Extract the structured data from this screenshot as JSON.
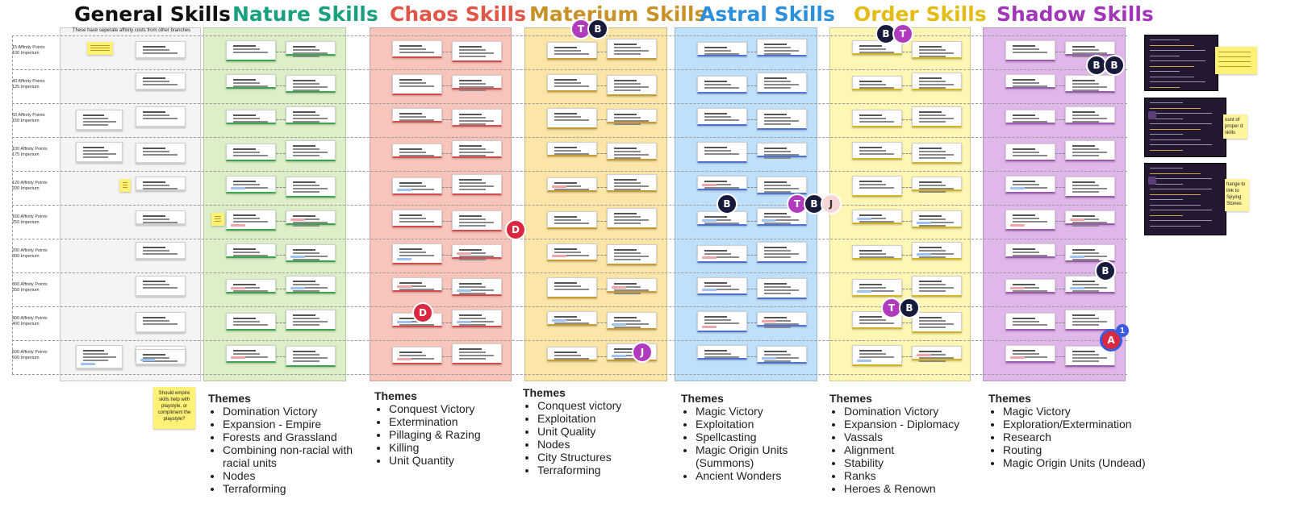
{
  "columns": [
    {
      "key": "general",
      "title": "General Skills",
      "color": "#111111",
      "bg": "#f4f4f4"
    },
    {
      "key": "nature",
      "title": "Nature Skills",
      "color": "#1a9f80",
      "bg": "#dcefc8"
    },
    {
      "key": "chaos",
      "title": "Chaos Skills",
      "color": "#e0574a",
      "bg": "#f8c5bc"
    },
    {
      "key": "materium",
      "title": "Materium Skills",
      "color": "#c8922a",
      "bg": "#fbe6a8"
    },
    {
      "key": "astral",
      "title": "Astral Skills",
      "color": "#2b8fd9",
      "bg": "#bfe0fa"
    },
    {
      "key": "order",
      "title": "Order Skills",
      "color": "#e3bc15",
      "bg": "#fdf6b4"
    },
    {
      "key": "shadow",
      "title": "Shadow Skills",
      "color": "#a236b8",
      "bg": "#e0b7ea"
    }
  ],
  "general_note": "These have seperate affinity costs from other branches",
  "rows": [
    {
      "line1": "15 Affinity Points",
      "line2": "100 Imperium"
    },
    {
      "line1": "40 Affinity Points",
      "line2": "125 Imperium"
    },
    {
      "line1": "60 Affinity Points",
      "line2": "150 Imperium"
    },
    {
      "line1": "100 Affinity Points",
      "line2": "175 Imperium"
    },
    {
      "line1": "120 Affinity Points",
      "line2": "200 Imperium"
    },
    {
      "line1": "160 Affinity Points",
      "line2": "250 Imperium"
    },
    {
      "line1": "200 Affinity Points",
      "line2": "300 Imperium"
    },
    {
      "line1": "300 Affinity Points",
      "line2": "350 Imperium"
    },
    {
      "line1": "400 Affinity Points",
      "line2": "400 Imperium"
    },
    {
      "line1": "500 Affinity Points",
      "line2": "500 Imperium"
    }
  ],
  "themes_heading": "Themes",
  "themes": [
    {
      "key": "nature",
      "items": [
        "Domination Victory",
        "Expansion - Empire",
        "Forests and Grassland",
        "Combining non-racial with racial units",
        "Nodes",
        "Terraforming"
      ]
    },
    {
      "key": "chaos",
      "items": [
        "Conquest Victory",
        "Extermination",
        "Pillaging & Razing",
        "Killing",
        "Unit Quantity"
      ]
    },
    {
      "key": "materium",
      "items": [
        "Conquest victory",
        "Exploitation",
        "Unit Quality",
        "Nodes",
        "City Structures",
        "Terraforming"
      ]
    },
    {
      "key": "astral",
      "items": [
        "Magic Victory",
        "Exploitation",
        "Spellcasting",
        "Magic Origin Units (Summons)",
        "Ancient Wonders"
      ]
    },
    {
      "key": "order",
      "items": [
        "Domination Victory",
        "Expansion - Diplomacy",
        "Vassals",
        "Alignment",
        "Stability",
        "Ranks",
        "Heroes & Renown"
      ]
    },
    {
      "key": "shadow",
      "items": [
        "Magic Victory",
        "Exploration/Extermination",
        "Research",
        "Routing",
        "Magic Origin Units (Undead)"
      ]
    }
  ],
  "sticky_note": "Should empire skills help with playstyle, or compliment the playstyle?",
  "side_notes": [
    {
      "text": "ount of proper d skills"
    },
    {
      "text": "hange to link to Spying Stones"
    }
  ],
  "avatar_colors": {
    "T": "#b13bbd",
    "B": "#171a3a",
    "J": "#b13bbd",
    "D": "#d9283f",
    "A": "#d9283f"
  },
  "collaborators": [
    "T",
    "B",
    "B",
    "T",
    "B",
    "B",
    "T",
    "B",
    "J",
    "B",
    "B",
    "T",
    "B",
    "D",
    "D",
    "J",
    "A"
  ],
  "notification_count": "1"
}
